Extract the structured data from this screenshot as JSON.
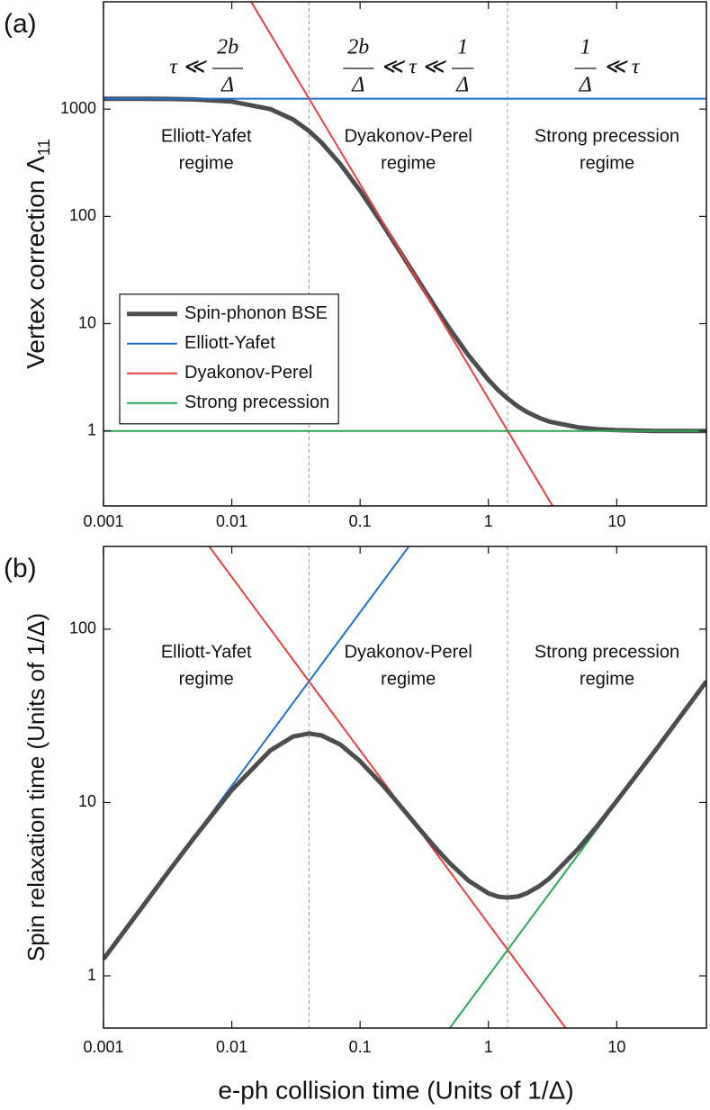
{
  "chart_data": [
    {
      "type": "line",
      "panel_label": "(a)",
      "ylabel": "Vertex correction Λ",
      "ylabel_sub": "11",
      "xscale": "log",
      "yscale": "log",
      "xlim": [
        0.001,
        50
      ],
      "ylim": [
        0.2,
        10000
      ],
      "xticks": [
        0.001,
        0.01,
        0.1,
        1,
        10
      ],
      "yticks": [
        1,
        10,
        100,
        1000
      ],
      "regime_boundaries": [
        0.04,
        1.41
      ],
      "regime_conditions": [
        [
          "τ ≪",
          {
            "num": "2b",
            "den": "Δ"
          }
        ],
        [
          {
            "num": "2b",
            "den": "Δ"
          },
          "≪ τ ≪",
          {
            "num": "1",
            "den": "Δ"
          }
        ],
        [
          {
            "num": "1",
            "den": "Δ"
          },
          "≪ τ"
        ]
      ],
      "regime_labels": [
        [
          "Elliott-Yafet",
          "regime"
        ],
        [
          "Dyakonov-Perel",
          "regime"
        ],
        [
          "Strong precession",
          "regime"
        ]
      ],
      "legend": "center left",
      "series": [
        {
          "name": "Spin-phonon BSE",
          "color": "#4d4d4d",
          "width": 5,
          "x": [
            0.001,
            0.002,
            0.003,
            0.005,
            0.01,
            0.02,
            0.03,
            0.04,
            0.05,
            0.07,
            0.1,
            0.15,
            0.2,
            0.3,
            0.4,
            0.5,
            0.7,
            1,
            1.2,
            1.4,
            1.7,
            2,
            2.5,
            3,
            5,
            7,
            10,
            20,
            50
          ],
          "values": [
            1249,
            1247,
            1243,
            1231,
            1176,
            1000,
            800,
            625,
            488,
            308,
            173,
            83.9,
            49.0,
            22.8,
            13.35,
            8.94,
            5.06,
            2.99,
            2.38,
            2.02,
            1.69,
            1.5,
            1.32,
            1.22,
            1.08,
            1.04,
            1.02,
            1.0,
            1.0
          ]
        },
        {
          "name": "Elliott-Yafet",
          "color": "#1f6fd1",
          "width": 2,
          "x": [
            0.001,
            50
          ],
          "values": [
            1250,
            1250
          ]
        },
        {
          "name": "Dyakonov-Perel",
          "color": "#e8403f",
          "width": 2,
          "x": [
            0.01,
            4
          ],
          "values": [
            20000,
            0.125
          ]
        },
        {
          "name": "Strong precession",
          "color": "#2ca55a",
          "width": 2,
          "x": [
            0.001,
            50
          ],
          "values": [
            1,
            1
          ]
        }
      ]
    },
    {
      "type": "line",
      "panel_label": "(b)",
      "ylabel": "Spin relaxation time (Units of 1/Δ)",
      "xlabel": "e-ph collision time (Units of 1/Δ)",
      "xscale": "log",
      "yscale": "log",
      "xlim": [
        0.001,
        50
      ],
      "ylim": [
        0.5,
        300
      ],
      "xticks": [
        0.001,
        0.01,
        0.1,
        1,
        10
      ],
      "yticks": [
        1,
        10,
        100
      ],
      "regime_boundaries": [
        0.04,
        1.41
      ],
      "regime_labels": [
        [
          "Elliott-Yafet",
          "regime"
        ],
        [
          "Dyakonov-Perel",
          "regime"
        ],
        [
          "Strong precession",
          "regime"
        ]
      ],
      "series": [
        {
          "color": "#1f6fd1",
          "width": 2,
          "x": [
            0.001,
            0.3
          ],
          "values": [
            1.25,
            375
          ]
        },
        {
          "color": "#e8403f",
          "width": 2,
          "x": [
            0.006,
            4
          ],
          "values": [
            333,
            0.5
          ]
        },
        {
          "color": "#2ca55a",
          "width": 2,
          "x": [
            0.5,
            50
          ],
          "values": [
            0.5,
            50
          ]
        },
        {
          "color": "#4d4d4d",
          "width": 5,
          "x": [
            0.001,
            0.002,
            0.003,
            0.005,
            0.01,
            0.02,
            0.03,
            0.04,
            0.05,
            0.07,
            0.1,
            0.15,
            0.2,
            0.3,
            0.4,
            0.5,
            0.7,
            1,
            1.2,
            1.4,
            1.7,
            2,
            2.5,
            3,
            5,
            7,
            10,
            20,
            50
          ],
          "values": [
            1.25,
            2.49,
            3.73,
            6.16,
            11.8,
            20.0,
            24.0,
            25.0,
            24.4,
            21.6,
            17.3,
            12.6,
            9.8,
            6.83,
            5.34,
            4.47,
            3.54,
            2.99,
            2.86,
            2.83,
            2.87,
            3.0,
            3.3,
            3.66,
            5.4,
            7.29,
            10.2,
            20.0,
            50.0
          ]
        }
      ]
    }
  ]
}
